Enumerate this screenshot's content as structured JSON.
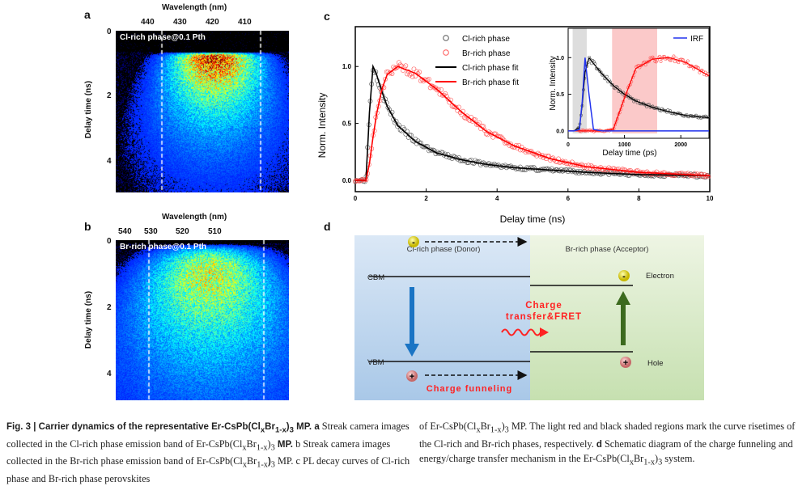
{
  "panel_a": {
    "label": "a",
    "top_axis_label": "Wavelength (nm)",
    "top_ticks": [
      "440",
      "430",
      "420",
      "410"
    ],
    "left_axis_label": "Delay time (ns)",
    "left_ticks": [
      "0",
      "2",
      "4"
    ],
    "title": "Cl-rich phase@0.1 Pth"
  },
  "panel_b": {
    "label": "b",
    "top_axis_label": "Wavelength (nm)",
    "top_ticks": [
      "540",
      "530",
      "520",
      "510"
    ],
    "left_axis_label": "Delay time (ns)",
    "left_ticks": [
      "0",
      "2",
      "4"
    ],
    "title": "Br-rich phase@0.1 Pth"
  },
  "panel_c": {
    "label": "c"
  },
  "chart_data": {
    "type": "scatter",
    "xlabel": "Delay time (ns)",
    "ylabel": "Norm. Intensity",
    "xlim": [
      0,
      10
    ],
    "ylim": [
      -0.1,
      1.35
    ],
    "x_ticks": [
      "0",
      "2",
      "4",
      "6",
      "8",
      "10"
    ],
    "y_ticks": [
      "0.0",
      "0.5",
      "1.0"
    ],
    "legend": [
      "Cl-rich phase",
      "Br-rich phase",
      "Cl-rich phase fit",
      "Br-rich phase fit"
    ],
    "legend_position": "top-center",
    "x": [
      0,
      0.3,
      0.4,
      0.5,
      0.6,
      0.75,
      0.9,
      1.2,
      1.7,
      2.3,
      3,
      3.7,
      4.5,
      5.5,
      6.5,
      8,
      10
    ],
    "series": [
      {
        "name": "Cl-rich phase fit",
        "color": "#000000",
        "values": [
          0,
          0,
          0.6,
          1.0,
          0.93,
          0.78,
          0.65,
          0.48,
          0.34,
          0.24,
          0.18,
          0.14,
          0.11,
          0.09,
          0.07,
          0.05,
          0.04
        ]
      },
      {
        "name": "Br-rich phase fit",
        "color": "#ff0000",
        "values": [
          0,
          0,
          0.15,
          0.38,
          0.58,
          0.8,
          0.93,
          1.0,
          0.94,
          0.8,
          0.6,
          0.43,
          0.3,
          0.19,
          0.12,
          0.07,
          0.04
        ]
      }
    ],
    "inset": {
      "xlabel": "Delay time (ps)",
      "ylabel": "Norm. Intensity",
      "xlim": [
        0,
        2500
      ],
      "ylim": [
        -0.1,
        1.4
      ],
      "x_ticks": [
        "0",
        "1000",
        "2000"
      ],
      "y_ticks": [
        "0.0",
        "0.5",
        "1.0"
      ],
      "legend": [
        "IRF"
      ],
      "shaded_gray": [
        80,
        330
      ],
      "shaded_red": [
        780,
        1580
      ],
      "x": [
        0,
        100,
        200,
        250,
        300,
        370,
        450,
        600,
        800,
        1000,
        1200,
        1500,
        1800,
        2100,
        2500
      ],
      "series": [
        {
          "name": "Cl-rich phase",
          "color": "#000000",
          "values": [
            0,
            0,
            0.05,
            0.35,
            0.8,
            1.0,
            0.92,
            0.78,
            0.62,
            0.5,
            0.41,
            0.32,
            0.26,
            0.21,
            0.18
          ]
        },
        {
          "name": "Br-rich phase",
          "color": "#ff0000",
          "values": [
            0,
            0,
            0,
            0,
            0,
            0,
            0,
            0,
            0.02,
            0.45,
            0.85,
            0.98,
            1.0,
            0.93,
            0.75
          ]
        },
        {
          "name": "IRF",
          "color": "#2233ee",
          "values": [
            0,
            0,
            0.02,
            0.4,
            1.0,
            0.5,
            0.02,
            0,
            0,
            0,
            0,
            0,
            0,
            0,
            0
          ]
        }
      ]
    }
  },
  "panel_d": {
    "label": "d",
    "donor": "Cl-rich phase (Donor)",
    "acceptor": "Br-rich phase (Acceptor)",
    "cbm": "CBM",
    "vbm": "VBM",
    "electron": "Electron",
    "hole": "Hole",
    "transfer_line1": "Charge",
    "transfer_line2": "transfer&FRET",
    "funneling": "Charge funneling",
    "minus": "-",
    "plus": "+"
  },
  "caption": {
    "col1": [
      "Fig. 3 | Carrier dynamics of the representative Er-CsPb(Cl",
      "x",
      "Br",
      "1-x",
      ")",
      "3",
      " MP.",
      " a",
      " Streak camera images collected in the Cl-rich phase emission band of Er-CsPb(Cl",
      "x",
      "Br",
      "1-x",
      ")",
      "3",
      " MP. ",
      "b",
      " Streak camera images collected in the Br-rich phase emission band of Er-CsPb(Cl",
      "x",
      "Br",
      "1-x",
      ")",
      "3",
      " MP. ",
      "c",
      " PL decay curves of Cl-rich phase and Br-rich phase perovskites"
    ],
    "col2": [
      "of Er-CsPb(Cl",
      "x",
      "Br",
      "1-x",
      ")",
      "3",
      " MP. The light red and black shaded regions mark the curve risetimes of the Cl-rich and Br-rich phases, respectively. ",
      "d",
      " Schematic diagram of the charge funneling and energy/charge transfer mechanism in the Er-CsPb(Cl",
      "x",
      "Br",
      "1-x",
      ")",
      "3",
      " system."
    ]
  }
}
